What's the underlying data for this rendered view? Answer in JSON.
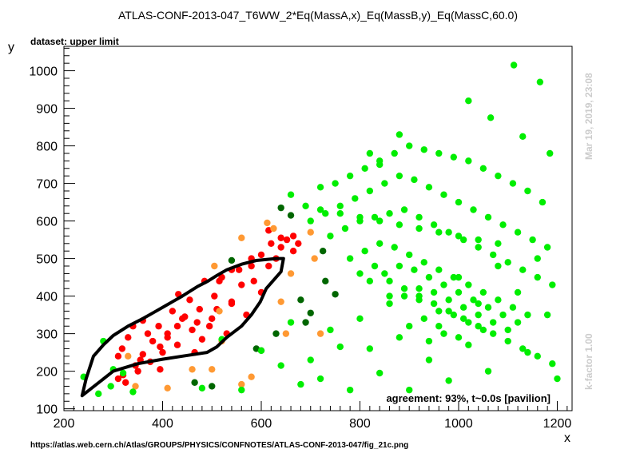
{
  "chart_data": {
    "type": "scatter",
    "title": "ATLAS-CONF-2013-047_T6WW_2*Eq(MassA,x)_Eq(MassB,y)_Eq(MassC,60.0)",
    "subtitle": "dataset: upper limit",
    "xlabel": "x",
    "ylabel": "y",
    "xlim": [
      200,
      1230
    ],
    "ylim": [
      95,
      1065
    ],
    "x_ticks": [
      200,
      400,
      600,
      800,
      1000,
      1200
    ],
    "y_ticks": [
      100,
      200,
      300,
      400,
      500,
      600,
      700,
      800,
      900,
      1000
    ],
    "grid": false,
    "legend": "none",
    "colors": {
      "excluded": "#ff0000",
      "borderline_excluded": "#ff9933",
      "borderline_allowed": "#006600",
      "allowed": "#00ee00",
      "contour": "#000000",
      "side_text": "#cccccc"
    },
    "series": [
      {
        "color_key": "excluded",
        "x": [
          310,
          318,
          330,
          340,
          350,
          360,
          370,
          380,
          392,
          400,
          410,
          420,
          432,
          440,
          455,
          465,
          475,
          485,
          495,
          505,
          515,
          530,
          540,
          555,
          570,
          585,
          600,
          615,
          630,
          640,
          652,
          665,
          675,
          310,
          325,
          345,
          360,
          375,
          395,
          410,
          430,
          445,
          460,
          480,
          500,
          520,
          540,
          560,
          580,
          600,
          620,
          640,
          665,
          320,
          355,
          395,
          430,
          470,
          510,
          540,
          580,
          615
        ],
        "y": [
          240,
          260,
          290,
          320,
          200,
          335,
          300,
          280,
          320,
          250,
          290,
          360,
          405,
          340,
          390,
          250,
          365,
          440,
          320,
          400,
          440,
          300,
          385,
          470,
          350,
          440,
          410,
          480,
          500,
          530,
          550,
          520,
          540,
          180,
          170,
          215,
          245,
          225,
          265,
          300,
          270,
          345,
          310,
          285,
          340,
          450,
          380,
          430,
          480,
          510,
          540,
          555,
          560,
          190,
          230,
          205,
          320,
          330,
          365,
          470,
          500,
          575
        ]
      },
      {
        "color_key": "borderline_excluded",
        "x": [
          330,
          345,
          410,
          460,
          500,
          505,
          520,
          560,
          580,
          612,
          625,
          640,
          650,
          660,
          700,
          708,
          720,
          560,
          515
        ],
        "y": [
          240,
          160,
          155,
          205,
          205,
          480,
          280,
          165,
          185,
          595,
          580,
          385,
          300,
          460,
          570,
          500,
          300,
          555,
          360
        ]
      },
      {
        "color_key": "borderline_allowed",
        "x": [
          465,
          500,
          540,
          590,
          600,
          630,
          640,
          660,
          680,
          690,
          700,
          725,
          730,
          750
        ],
        "y": [
          170,
          160,
          495,
          260,
          255,
          300,
          635,
          615,
          390,
          330,
          355,
          520,
          440,
          405
        ]
      },
      {
        "color_key": "allowed",
        "x": [
          240,
          270,
          295,
          320,
          340,
          280,
          300,
          480,
          520,
          560,
          600,
          640,
          660,
          680,
          700,
          720,
          740,
          760,
          780,
          800,
          820,
          840,
          860,
          880,
          900,
          920,
          940,
          960,
          980,
          1000,
          1020,
          1040,
          1060,
          1080,
          1100,
          1120,
          1140,
          1160,
          1180,
          1200,
          660,
          690,
          720,
          750,
          780,
          810,
          840,
          870,
          900,
          930,
          960,
          990,
          1020,
          1050,
          1080,
          1110,
          1140,
          1170,
          700,
          730,
          760,
          790,
          820,
          850,
          880,
          910,
          940,
          970,
          1000,
          1030,
          1060,
          1090,
          1120,
          1150,
          1180,
          740,
          770,
          800,
          830,
          860,
          890,
          920,
          950,
          980,
          1010,
          1040,
          1070,
          1100,
          1130,
          1160,
          1190,
          780,
          810,
          840,
          870,
          900,
          930,
          960,
          990,
          1020,
          1050,
          1080,
          1110,
          1140,
          820,
          850,
          880,
          910,
          940,
          970,
          1000,
          1030,
          1060,
          1090,
          1120,
          860,
          890,
          920,
          950,
          980,
          1010,
          1040,
          1070,
          900,
          930,
          960,
          990,
          1020,
          1050,
          940,
          970,
          1000,
          800,
          830,
          860,
          890,
          920,
          950,
          980,
          1010,
          1040,
          1070,
          1100,
          1130,
          1160,
          1190,
          720,
          760,
          800,
          840,
          880,
          920,
          960,
          1000,
          1040,
          1080,
          1112,
          1065,
          1165,
          1185,
          1020,
          1130,
          880,
          820,
          840
        ],
        "y": [
          185,
          140,
          160,
          195,
          145,
          280,
          205,
          155,
          285,
          150,
          255,
          215,
          330,
          165,
          230,
          180,
          310,
          265,
          150,
          340,
          260,
          195,
          400,
          290,
          150,
          390,
          230,
          320,
          175,
          450,
          270,
          380,
          200,
          480,
          310,
          410,
          250,
          500,
          350,
          180,
          670,
          640,
          690,
          700,
          720,
          740,
          760,
          780,
          800,
          790,
          780,
          770,
          760,
          740,
          720,
          700,
          680,
          650,
          600,
          620,
          640,
          660,
          680,
          700,
          720,
          710,
          690,
          670,
          650,
          630,
          610,
          590,
          570,
          550,
          530,
          560,
          580,
          600,
          610,
          620,
          630,
          610,
          590,
          570,
          550,
          530,
          510,
          490,
          470,
          450,
          430,
          500,
          520,
          540,
          530,
          510,
          490,
          470,
          450,
          430,
          410,
          390,
          370,
          350,
          440,
          460,
          480,
          470,
          450,
          430,
          410,
          390,
          370,
          350,
          330,
          380,
          400,
          420,
          410,
          390,
          370,
          350,
          330,
          320,
          340,
          360,
          350,
          330,
          310,
          280,
          300,
          290,
          460,
          480,
          440,
          420,
          400,
          380,
          360,
          340,
          320,
          300,
          280,
          260,
          240,
          220,
          630,
          620,
          610,
          600,
          590,
          580,
          570,
          560,
          550,
          540,
          1015,
          875,
          970,
          780,
          920,
          825,
          830,
          780,
          750
        ]
      }
    ],
    "contour": {
      "x": [
        237,
        300,
        350,
        400,
        440,
        490,
        510,
        530,
        560,
        580,
        598,
        610,
        640,
        645,
        630,
        590,
        560,
        530,
        510,
        492,
        470,
        440,
        420,
        400,
        380,
        360,
        330,
        300,
        280,
        260,
        245,
        237
      ],
      "y": [
        135,
        200,
        220,
        232,
        240,
        250,
        265,
        290,
        320,
        350,
        385,
        420,
        465,
        500,
        500,
        495,
        485,
        470,
        455,
        440,
        425,
        400,
        385,
        370,
        355,
        340,
        320,
        295,
        270,
        240,
        180,
        135
      ]
    },
    "annotations": {
      "agreement": "agreement: 93%, t~0.0s [pavilion]",
      "timestamp": "Mar 19, 2019, 23:08",
      "kfactor": "k-factor 1.00",
      "source_url": "https://atlas.web.cern.ch/Atlas/GROUPS/PHYSICS/CONFNOTES/ATLAS-CONF-2013-047/fig_21c.png"
    }
  }
}
